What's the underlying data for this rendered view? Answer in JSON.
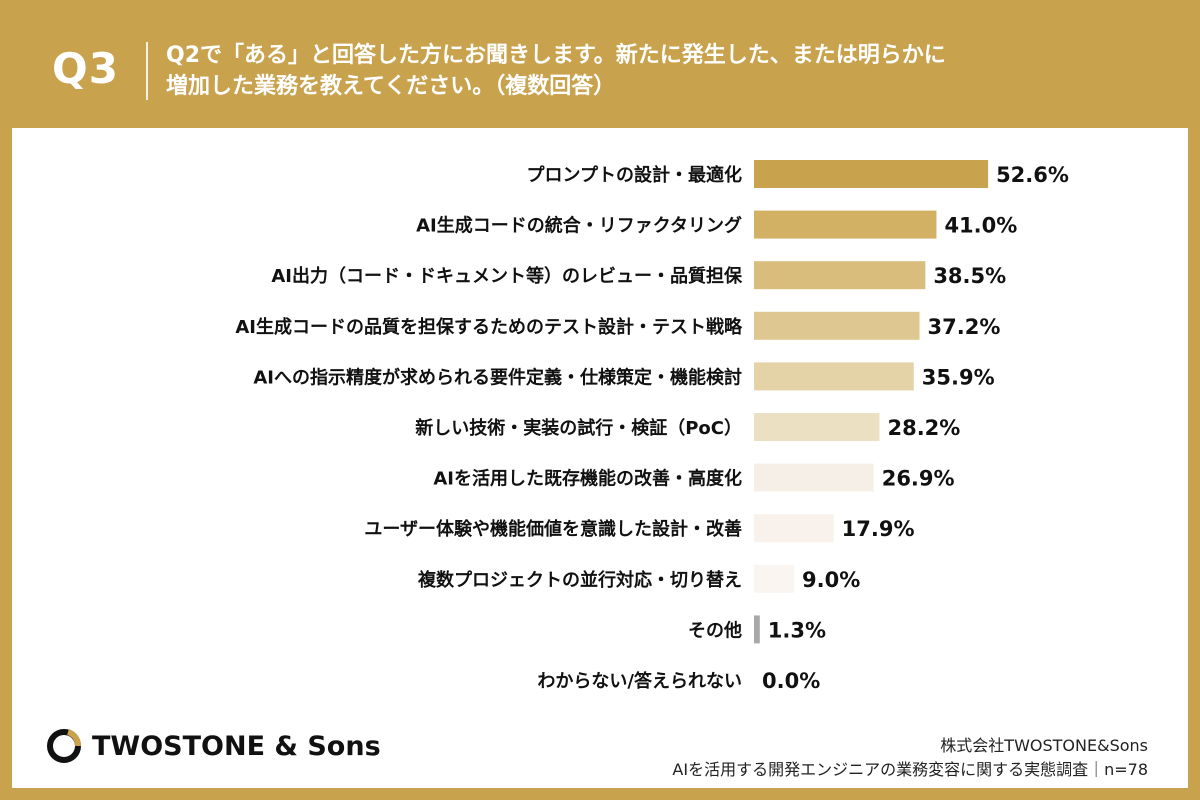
{
  "header": {
    "question_label": "Q3",
    "question_line1": "Q2で「ある」と回答した方にお聞きします。新たに発生した、または明らかに",
    "question_line2": "増加した業務を教えてください。（複数回答）"
  },
  "chart_data": {
    "type": "bar",
    "orientation": "horizontal",
    "categories": [
      "プロンプトの設計・最適化",
      "AI生成コードの統合・リファクタリング",
      "AI出力（コード・ドキュメント等）のレビュー・品質担保",
      "AI生成コードの品質を担保するためのテスト設計・テスト戦略",
      "AIへの指示精度が求められる要件定義・仕様策定・機能検討",
      "新しい技術・実装の試行・検証（PoC）",
      "AIを活用した既存機能の改善・高度化",
      "ユーザー体験や機能価値を意識した設計・改善",
      "複数プロジェクトの並行対応・切り替え",
      "その他",
      "わからない/答えられない"
    ],
    "values": [
      52.6,
      41.0,
      38.5,
      37.2,
      35.9,
      28.2,
      26.9,
      17.9,
      9.0,
      1.3,
      0.0
    ],
    "value_labels": [
      "52.6%",
      "41.0%",
      "38.5%",
      "37.2%",
      "35.9%",
      "28.2%",
      "26.9%",
      "17.9%",
      "9.0%",
      "1.3%",
      "0.0%"
    ],
    "bar_colors": [
      "#c9a24e",
      "#d2b165",
      "#d9bd7c",
      "#dfc791",
      "#e5d3a8",
      "#ece0c2",
      "#f6efe7",
      "#f8f1ec",
      "#faf5f0",
      "#a8a8a8",
      "#e8e8e8"
    ],
    "xlim": [
      0,
      100
    ]
  },
  "footer": {
    "brand": "TWOSTONE & Sons",
    "company": "株式会社TWOSTONE&Sons",
    "survey": "AIを活用する開発エンジニアの業務変容に関する実態調査｜n=78"
  },
  "colors": {
    "background": "#c9a24e",
    "panel": "#ffffff",
    "header_text": "#ffffff"
  }
}
